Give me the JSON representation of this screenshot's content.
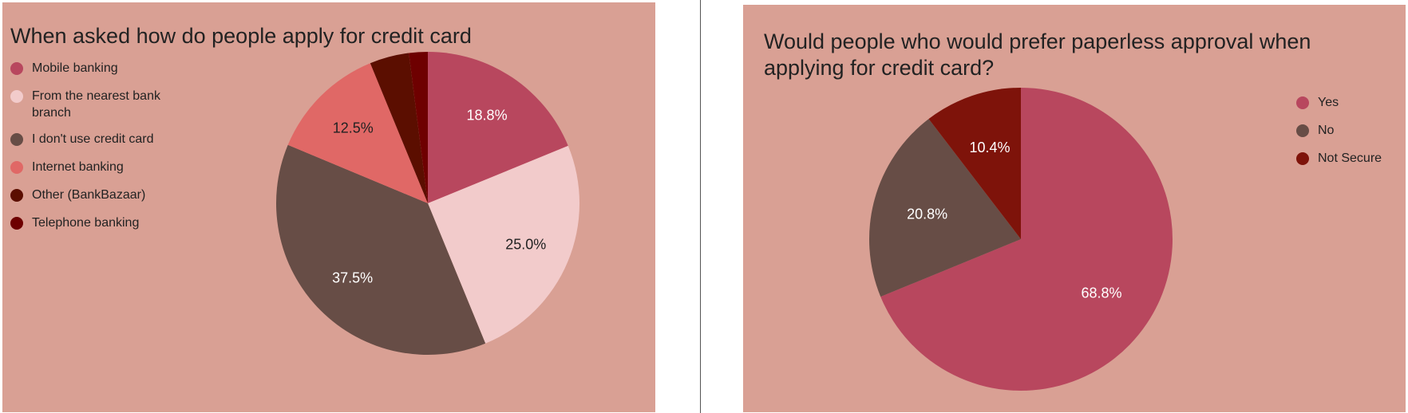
{
  "chart_data": [
    {
      "type": "pie",
      "title": "When asked how do people apply for credit card",
      "legend_position": "left",
      "slices": [
        {
          "label": "Mobile banking",
          "value": 18.8,
          "color": "#b8475e",
          "data_label": "18.8%",
          "label_color": "#ffffff"
        },
        {
          "label": "From the nearest bank branch",
          "value": 25.0,
          "color": "#f2cbcb",
          "data_label": "25.0%",
          "label_color": "#222222"
        },
        {
          "label": "I don't use credit card",
          "value": 37.5,
          "color": "#674d46",
          "data_label": "37.5%",
          "label_color": "#ffffff"
        },
        {
          "label": "Internet banking",
          "value": 12.5,
          "color": "#e06866",
          "data_label": "12.5%",
          "label_color": "#222222"
        },
        {
          "label": "Other (BankBazaar)",
          "value": 4.2,
          "color": "#5b0e00",
          "data_label": "",
          "label_color": "#ffffff"
        },
        {
          "label": "Telephone banking",
          "value": 2.0,
          "color": "#6e0000",
          "data_label": "",
          "label_color": "#ffffff"
        }
      ]
    },
    {
      "type": "pie",
      "title": "Would people who would prefer paperless approval when applying for credit card?",
      "legend_position": "right",
      "slices": [
        {
          "label": "Yes",
          "value": 68.8,
          "color": "#b8475e",
          "data_label": "68.8%",
          "label_color": "#ffffff"
        },
        {
          "label": "No",
          "value": 20.8,
          "color": "#674d46",
          "data_label": "20.8%",
          "label_color": "#ffffff"
        },
        {
          "label": "Not Secure",
          "value": 10.4,
          "color": "#7e130a",
          "data_label": "10.4%",
          "label_color": "#ffffff"
        }
      ]
    }
  ],
  "colors": {
    "panel_background": "#d9a094",
    "page_background": "#ffffff",
    "divider": "#555555"
  }
}
